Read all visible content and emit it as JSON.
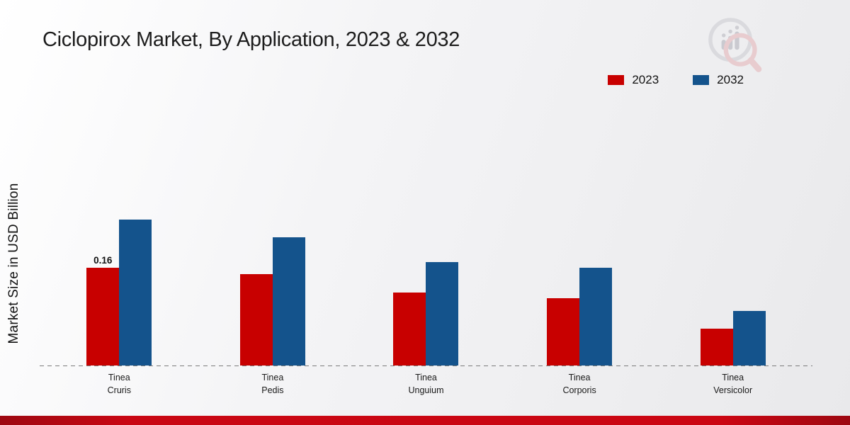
{
  "title": "Ciclopirox Market, By Application, 2023 & 2032",
  "legend": [
    {
      "label": "2023",
      "color": "#c80000"
    },
    {
      "label": "2032",
      "color": "#14538c"
    }
  ],
  "chart_data": {
    "type": "bar",
    "title": "Ciclopirox Market, By Application, 2023 & 2032",
    "categories": [
      "Tinea Cruris",
      "Tinea Pedis",
      "Tinea Unguium",
      "Tinea Corporis",
      "Tinea Versicolor"
    ],
    "series": [
      {
        "name": "2023",
        "color": "#c80000",
        "values": [
          0.16,
          0.15,
          0.12,
          0.11,
          0.06
        ]
      },
      {
        "name": "2032",
        "color": "#14538c",
        "values": [
          0.24,
          0.21,
          0.17,
          0.16,
          0.09
        ]
      }
    ],
    "annotation": {
      "series": "2023",
      "category": "Tinea Cruris",
      "text": "0.16"
    },
    "xlabel": "",
    "ylabel": "Market Size in USD Billion",
    "ylim": [
      0,
      0.28
    ],
    "grid": false,
    "legend_position": "top-right",
    "axis_style": "dashed-baseline-only"
  }
}
